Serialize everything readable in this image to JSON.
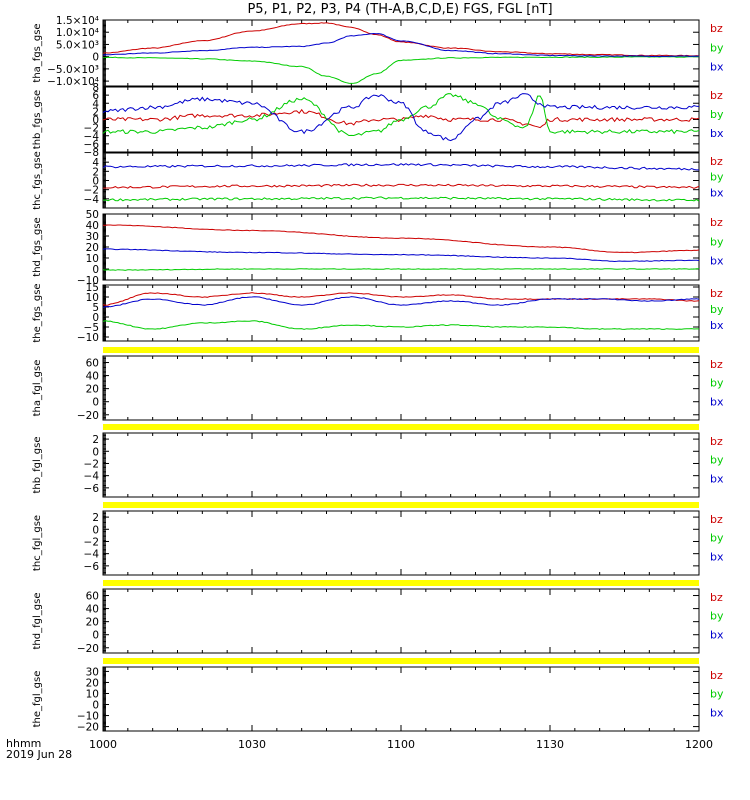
{
  "title": "P5, P1, P2, P3, P4 (TH-A,B,C,D,E) FGS, FGL [nT]",
  "xaxis": {
    "unit": "hhmm",
    "date": "2019 Jun 28",
    "ticks": [
      "1000",
      "1030",
      "1100",
      "1130",
      "1200"
    ]
  },
  "legend": [
    "bz",
    "by",
    "bx"
  ],
  "colors": {
    "bx": "#0000cc",
    "by": "#00cc00",
    "bz": "#cc0000",
    "bar": "#ffff00",
    "frame": "#000000"
  },
  "chart_data": [
    {
      "type": "line",
      "ylabel": "tha_fgs_gse",
      "ylim": [
        -12000,
        15000
      ],
      "yticks": [
        "1.5×10⁴",
        "1.0×10⁴",
        "5.0×10³",
        "0",
        "−5.0×10³",
        "−1.0×10⁴"
      ],
      "ytick_values": [
        15000,
        10000,
        5000,
        0,
        -5000,
        -10000
      ],
      "x": [
        "10:00",
        "10:10",
        "10:20",
        "10:30",
        "10:40",
        "10:45",
        "10:50",
        "10:55",
        "11:00",
        "11:10",
        "11:20",
        "11:30",
        "11:40",
        "11:50",
        "12:00"
      ],
      "series": [
        {
          "name": "bz",
          "values": [
            1500,
            3500,
            6500,
            10500,
            13500,
            13800,
            12000,
            9000,
            6000,
            3500,
            2000,
            1200,
            800,
            500,
            400
          ]
        },
        {
          "name": "by",
          "values": [
            -300,
            -500,
            -900,
            -1800,
            -4000,
            -8000,
            -11000,
            -7000,
            -1500,
            -500,
            -300,
            -200,
            -200,
            -100,
            -100
          ]
        },
        {
          "name": "bx",
          "values": [
            800,
            1500,
            2500,
            3800,
            4200,
            5500,
            8500,
            9500,
            6500,
            2500,
            1200,
            500,
            300,
            200,
            200
          ]
        }
      ]
    },
    {
      "type": "line",
      "ylabel": "thb_fgs_gse",
      "ylim": [
        -8,
        8
      ],
      "yticks": [
        "8",
        "6",
        "4",
        "2",
        "0",
        "−2",
        "−4",
        "−6",
        "−8"
      ],
      "ytick_values": [
        8,
        6,
        4,
        2,
        0,
        -2,
        -4,
        -6,
        -8
      ],
      "x": [
        "10:00",
        "10:10",
        "10:20",
        "10:30",
        "10:40",
        "10:50",
        "10:55",
        "11:00",
        "11:05",
        "11:10",
        "11:15",
        "11:20",
        "11:25",
        "11:28",
        "11:30",
        "11:40",
        "11:50",
        "12:00"
      ],
      "series": [
        {
          "name": "bz",
          "values": [
            0,
            0,
            1,
            1,
            2,
            -1,
            0,
            0,
            1,
            0,
            0,
            0,
            -1,
            -2,
            0,
            0,
            0,
            0
          ]
        },
        {
          "name": "by",
          "values": [
            -3,
            -3,
            -2,
            0,
            5,
            -4,
            -3,
            0,
            3,
            6,
            4,
            0,
            -2,
            6,
            -3,
            -3,
            -3,
            -3
          ]
        },
        {
          "name": "bx",
          "values": [
            2,
            3,
            5,
            4,
            -3,
            3,
            6,
            4,
            -3,
            -5,
            0,
            4,
            6,
            4,
            3,
            3,
            3,
            3
          ]
        }
      ]
    },
    {
      "type": "line",
      "ylabel": "thc_fgs_gse",
      "ylim": [
        -6,
        6
      ],
      "yticks": [
        "4",
        "2",
        "0",
        "−2",
        "−4"
      ],
      "ytick_values": [
        4,
        2,
        0,
        -2,
        -4
      ],
      "x": [
        "10:00",
        "10:30",
        "11:00",
        "11:30",
        "12:00"
      ],
      "series": [
        {
          "name": "bz",
          "values": [
            -1.5,
            -1.2,
            -1.0,
            -1.2,
            -1.5
          ]
        },
        {
          "name": "by",
          "values": [
            -4.2,
            -4.0,
            -3.8,
            -4.0,
            -4.3
          ]
        },
        {
          "name": "bx",
          "values": [
            3.0,
            3.2,
            3.5,
            3.0,
            2.5
          ]
        }
      ]
    },
    {
      "type": "line",
      "ylabel": "thd_fgs_gse",
      "ylim": [
        -10,
        50
      ],
      "yticks": [
        "50",
        "40",
        "30",
        "20",
        "10",
        "0",
        "−10"
      ],
      "ytick_values": [
        50,
        40,
        30,
        20,
        10,
        0,
        -10
      ],
      "x": [
        "10:00",
        "10:30",
        "11:00",
        "11:30",
        "11:45",
        "12:00"
      ],
      "series": [
        {
          "name": "bz",
          "values": [
            40,
            35,
            28,
            20,
            15,
            17
          ]
        },
        {
          "name": "by",
          "values": [
            -1,
            0,
            0,
            0,
            0,
            0
          ]
        },
        {
          "name": "bx",
          "values": [
            18,
            15,
            13,
            10,
            7,
            8
          ]
        }
      ]
    },
    {
      "type": "line",
      "ylabel": "the_fgs_gse",
      "ylim": [
        -12,
        16
      ],
      "yticks": [
        "15",
        "10",
        "5",
        "0",
        "−5",
        "−10"
      ],
      "ytick_values": [
        15,
        10,
        5,
        0,
        -5,
        -10
      ],
      "x": [
        "10:00",
        "10:10",
        "10:20",
        "10:30",
        "10:40",
        "10:50",
        "11:00",
        "11:10",
        "11:20",
        "11:30",
        "11:40",
        "11:50",
        "12:00"
      ],
      "series": [
        {
          "name": "bz",
          "values": [
            6,
            12,
            10,
            12,
            10,
            12,
            10,
            11,
            9,
            9,
            9,
            9,
            8
          ]
        },
        {
          "name": "by",
          "values": [
            -2,
            -6,
            -3,
            -2,
            -6,
            -4,
            -5,
            -4,
            -5,
            -5,
            -6,
            -6,
            -6
          ]
        },
        {
          "name": "bx",
          "values": [
            5,
            9,
            6,
            10,
            6,
            10,
            6,
            8,
            6,
            9,
            9,
            8,
            9
          ]
        }
      ]
    },
    {
      "type": "line",
      "ylabel": "tha_fgl_gse",
      "ylim": [
        -28,
        70
      ],
      "yticks": [
        "60",
        "40",
        "20",
        "0",
        "−20"
      ],
      "ytick_values": [
        60,
        40,
        20,
        0,
        -20
      ],
      "series": []
    },
    {
      "type": "line",
      "ylabel": "thb_fgl_gse",
      "ylim": [
        -7.5,
        3
      ],
      "yticks": [
        "2",
        "0",
        "−2",
        "−4",
        "−6"
      ],
      "ytick_values": [
        2,
        0,
        -2,
        -4,
        -6
      ],
      "series": []
    },
    {
      "type": "line",
      "ylabel": "thc_fgl_gse",
      "ylim": [
        -7.5,
        3
      ],
      "yticks": [
        "2",
        "0",
        "−2",
        "−4",
        "−6"
      ],
      "ytick_values": [
        2,
        0,
        -2,
        -4,
        -6
      ],
      "series": []
    },
    {
      "type": "line",
      "ylabel": "thd_fgl_gse",
      "ylim": [
        -28,
        70
      ],
      "yticks": [
        "60",
        "40",
        "20",
        "0",
        "−20"
      ],
      "ytick_values": [
        60,
        40,
        20,
        0,
        -20
      ],
      "series": []
    },
    {
      "type": "line",
      "ylabel": "the_fgl_gse",
      "ylim": [
        -24,
        34
      ],
      "yticks": [
        "30",
        "20",
        "10",
        "0",
        "−10",
        "−20"
      ],
      "ytick_values": [
        30,
        20,
        10,
        0,
        -10,
        -20
      ],
      "series": []
    }
  ]
}
